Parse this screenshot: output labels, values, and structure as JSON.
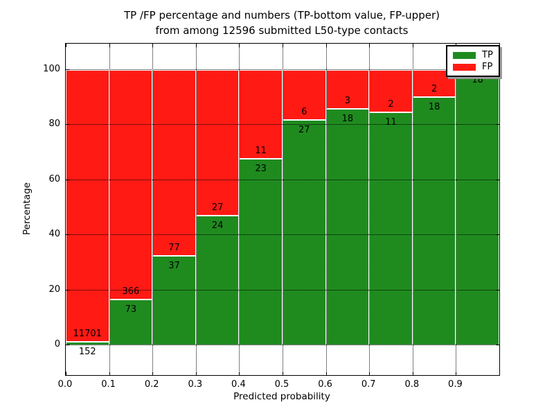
{
  "title": {
    "line1": "TP /FP percentage and numbers (TP-bottom value, FP-upper)",
    "line2": "from among 12596 submitted L50-type contacts"
  },
  "axes": {
    "xlabel": "Predicted probability",
    "ylabel": "Percentage"
  },
  "legend": {
    "items": [
      {
        "label": "TP",
        "color": "#1f8b1f"
      },
      {
        "label": "FP",
        "color": "#ff1a14"
      }
    ]
  },
  "colors": {
    "tp": "#1f8b1f",
    "fp": "#ff1a14",
    "grid": "#000000",
    "frame": "#000000",
    "background": "#ffffff"
  },
  "chart_data": {
    "type": "bar",
    "stacked": true,
    "normalized": "each bin scaled to 100% (TP bottom green, FP top red)",
    "title": "TP /FP percentage and numbers (TP-bottom value, FP-upper) from among 12596 submitted L50-type contacts",
    "xlabel": "Predicted probability",
    "ylabel": "Percentage",
    "total_contacts": 12596,
    "x_tick_labels": [
      "0.0",
      "0.1",
      "0.2",
      "0.3",
      "0.4",
      "0.5",
      "0.6",
      "0.7",
      "0.8",
      "0.9"
    ],
    "y_ticks": [
      0,
      20,
      40,
      60,
      80,
      100
    ],
    "y_tick_labels": [
      "0",
      "20",
      "40",
      "60",
      "80",
      "100"
    ],
    "xlim": [
      0.0,
      1.0
    ],
    "ylim": [
      -11,
      109
    ],
    "grid": "dotted",
    "legend_position": "upper right",
    "series": [
      {
        "name": "TP",
        "color": "#1f8b1f"
      },
      {
        "name": "FP",
        "color": "#ff1a14"
      }
    ],
    "bins": [
      {
        "x_start": 0.0,
        "x_end": 0.1,
        "tp": 152,
        "fp": 11701
      },
      {
        "x_start": 0.1,
        "x_end": 0.2,
        "tp": 73,
        "fp": 366
      },
      {
        "x_start": 0.2,
        "x_end": 0.3,
        "tp": 37,
        "fp": 77
      },
      {
        "x_start": 0.3,
        "x_end": 0.4,
        "tp": 24,
        "fp": 27
      },
      {
        "x_start": 0.4,
        "x_end": 0.5,
        "tp": 23,
        "fp": 11
      },
      {
        "x_start": 0.5,
        "x_end": 0.6,
        "tp": 27,
        "fp": 6
      },
      {
        "x_start": 0.6,
        "x_end": 0.7,
        "tp": 18,
        "fp": 3
      },
      {
        "x_start": 0.7,
        "x_end": 0.8,
        "tp": 11,
        "fp": 2
      },
      {
        "x_start": 0.8,
        "x_end": 0.9,
        "tp": 18,
        "fp": 2
      },
      {
        "x_start": 0.9,
        "x_end": 1.0,
        "tp": 18,
        "fp": 0,
        "fp_label_visible": false
      }
    ]
  }
}
